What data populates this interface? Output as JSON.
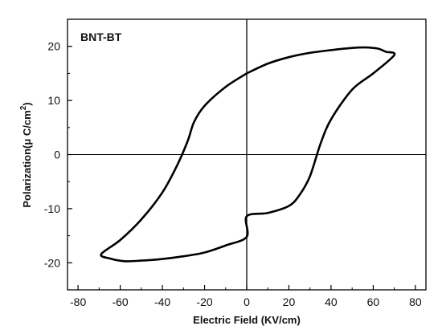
{
  "chart_data": {
    "type": "line",
    "title": "",
    "annotation": "BNT-BT",
    "xlabel": "Electric Field (KV/cm)",
    "ylabel_main": "Polarization(μ C/cm",
    "ylabel_sup": "2",
    "ylabel_close": ")",
    "xlim": [
      -85,
      85
    ],
    "ylim": [
      -25,
      25
    ],
    "xticks": [
      -80,
      -60,
      -40,
      -20,
      0,
      20,
      40,
      60,
      80
    ],
    "yticks": [
      -20,
      -10,
      0,
      10,
      20
    ],
    "grid": false,
    "reference_lines": {
      "x": 0,
      "y": 0
    },
    "series": [
      {
        "color": "#000000",
        "x": [
          0,
          10,
          20,
          30,
          40,
          50,
          56,
          62,
          66,
          70,
          60,
          50,
          40,
          35,
          30,
          25,
          20,
          10,
          0,
          0,
          -10,
          -20,
          -30,
          -40,
          -50,
          -58,
          -65,
          -69,
          -60,
          -50,
          -40,
          -33,
          -28,
          -25,
          -20,
          -10,
          0
        ],
        "y": [
          15,
          16.8,
          18,
          18.8,
          19.3,
          19.7,
          19.8,
          19.6,
          19,
          18.4,
          15,
          12,
          6.5,
          2,
          -4,
          -7.5,
          -9.5,
          -10.8,
          -11.4,
          -15.2,
          -16.8,
          -18.1,
          -18.8,
          -19.3,
          -19.6,
          -19.7,
          -19.2,
          -18.4,
          -15.8,
          -12,
          -7,
          -2,
          2.5,
          6,
          9,
          12.5,
          15
        ]
      }
    ]
  }
}
